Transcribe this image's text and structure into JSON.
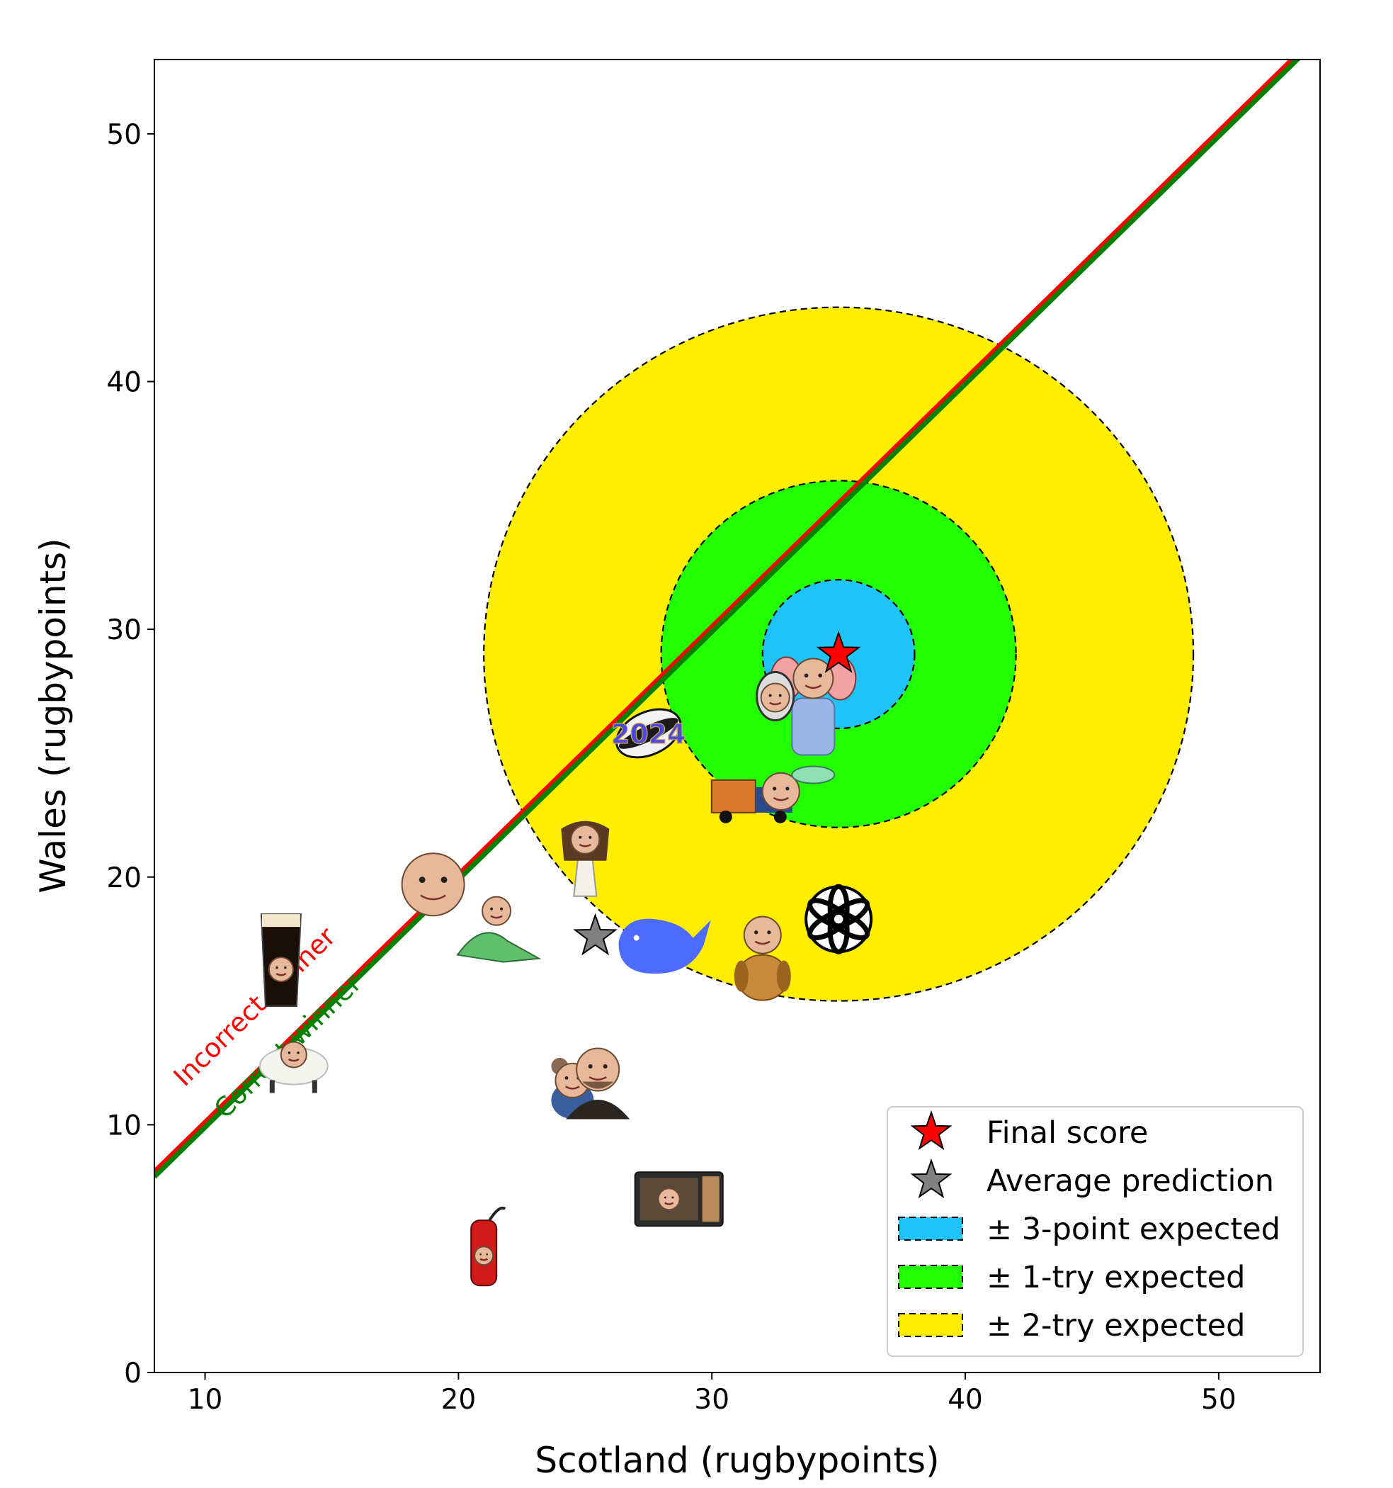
{
  "chart_data": {
    "type": "scatter",
    "title": "",
    "xlabel": "Scotland (rugbypoints)",
    "ylabel": "Wales (rugbypoints)",
    "xlim": [
      8,
      54
    ],
    "ylim": [
      0,
      53
    ],
    "xticks": [
      10,
      20,
      30,
      40,
      50
    ],
    "yticks": [
      0,
      10,
      20,
      30,
      40,
      50
    ],
    "grid": false,
    "legend_position": "bottom-right",
    "final_score": {
      "x": 35,
      "y": 29,
      "color": "#ff0000"
    },
    "average_prediction": {
      "x": 25.4,
      "y": 17.6,
      "color": "#808080"
    },
    "zones": [
      {
        "label": "± 2-try expected",
        "radius": 14,
        "color": "#ffee00"
      },
      {
        "label": "± 1-try expected",
        "radius": 7,
        "color": "#22ff00"
      },
      {
        "label": "± 3-point expected",
        "radius": 3,
        "color": "#1fc3f5"
      }
    ],
    "diagonal_lines": [
      {
        "label": "Incorrect winner",
        "color": "#ff0000",
        "offset": 0.1
      },
      {
        "label": "Correct winner",
        "color": "#008000",
        "offset": -0.1
      }
    ],
    "predictions": [
      {
        "name": "pint-glass-person",
        "icon": "pint-glass-icon",
        "x": 13,
        "y": 16.5
      },
      {
        "name": "sheep-person",
        "icon": "sheep-icon",
        "x": 13.5,
        "y": 12.6
      },
      {
        "name": "baby-face",
        "icon": "baby-face-icon",
        "x": 19,
        "y": 19.7
      },
      {
        "name": "dinosaur-person",
        "icon": "dinosaur-icon",
        "x": 21.5,
        "y": 18
      },
      {
        "name": "fire-extinguisher-person",
        "icon": "fire-extinguisher-icon",
        "x": 21,
        "y": 5
      },
      {
        "name": "bear-person",
        "icon": "bear-toy-icon",
        "x": 24.5,
        "y": 11.5
      },
      {
        "name": "bearded-person",
        "icon": "person-icon",
        "x": 25.5,
        "y": 11.8
      },
      {
        "name": "angel-person",
        "icon": "angel-icon",
        "x": 25,
        "y": 20.8
      },
      {
        "name": "rugby-ball-2024",
        "icon": "rugby-ball-icon",
        "x": 27.5,
        "y": 25.8
      },
      {
        "name": "whale",
        "icon": "whale-icon",
        "x": 28,
        "y": 17.4
      },
      {
        "name": "microwave-person",
        "icon": "microwave-icon",
        "x": 28.7,
        "y": 7
      },
      {
        "name": "truck-person",
        "icon": "truck-icon",
        "x": 32,
        "y": 23
      },
      {
        "name": "dog-person",
        "icon": "dog-icon",
        "x": 32,
        "y": 16.8
      },
      {
        "name": "openai-logo",
        "icon": "openai-logo-icon",
        "x": 35,
        "y": 18.3
      },
      {
        "name": "elephant-person",
        "icon": "elephant-icon",
        "x": 34,
        "y": 27.5
      },
      {
        "name": "mirror-person",
        "icon": "mirror-person-icon",
        "x": 32.5,
        "y": 27.3
      }
    ],
    "legend": [
      {
        "label": "Final score",
        "kind": "star",
        "color": "#ff0000"
      },
      {
        "label": "Average prediction",
        "kind": "star",
        "color": "#808080"
      },
      {
        "label": "± 3-point expected",
        "kind": "patch",
        "color": "#1fc3f5"
      },
      {
        "label": "± 1-try expected",
        "kind": "patch",
        "color": "#22ff00"
      },
      {
        "label": "± 2-try expected",
        "kind": "patch",
        "color": "#ffee00"
      }
    ]
  }
}
